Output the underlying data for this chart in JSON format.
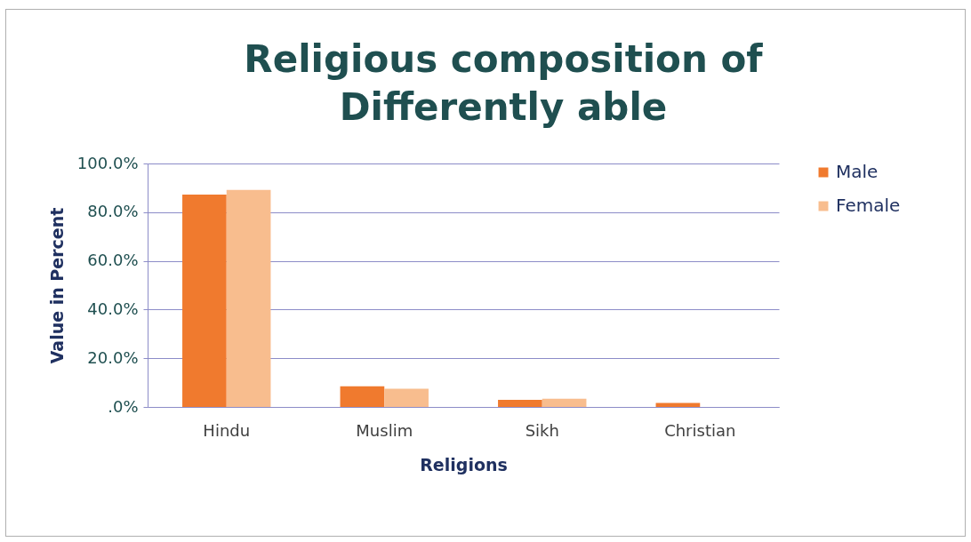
{
  "chart_data": {
    "type": "bar",
    "title": "Religious composition of Differently able",
    "xlabel": "Religions",
    "ylabel": "Value in Percent",
    "categories": [
      "Hindu",
      "Muslim",
      "Sikh",
      "Christian"
    ],
    "series": [
      {
        "name": "Male",
        "color": "#f07a2e",
        "values": [
          87.2,
          8.5,
          2.9,
          1.6
        ]
      },
      {
        "name": "Female",
        "color": "#f8bd8e",
        "values": [
          89.1,
          7.5,
          3.4,
          null
        ]
      }
    ],
    "ylim": [
      0,
      100
    ],
    "yticks": [
      {
        "value": 0,
        "label": ".0%"
      },
      {
        "value": 20,
        "label": "20.0%"
      },
      {
        "value": 40,
        "label": "40.0%"
      },
      {
        "value": 60,
        "label": "60.0%"
      },
      {
        "value": 80,
        "label": "80.0%"
      },
      {
        "value": 100,
        "label": "100.0%"
      }
    ],
    "grid": "y",
    "legend": "right"
  }
}
